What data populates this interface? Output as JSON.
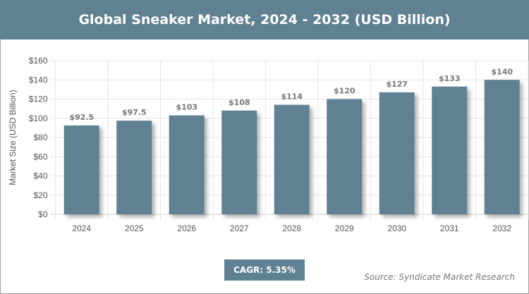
{
  "chart_data": {
    "type": "bar",
    "title": "Global Sneaker Market, 2024 - 2032 (USD Billion)",
    "ylabel": "Market Size (USD Billion)",
    "xlabel": "",
    "categories": [
      "2024",
      "2025",
      "2026",
      "2027",
      "2028",
      "2029",
      "2030",
      "2031",
      "2032"
    ],
    "values": [
      92.5,
      97.5,
      103,
      108,
      114,
      120,
      127,
      133,
      140
    ],
    "data_labels": [
      "$92.5",
      "$97.5",
      "$103",
      "$108",
      "$114",
      "$120",
      "$127",
      "$133",
      "$140"
    ],
    "ylim": [
      0,
      160
    ],
    "yticks": [
      "$0",
      "$20",
      "$40",
      "$60",
      "$80",
      "$100",
      "$120",
      "$140",
      "$160"
    ],
    "grid": true,
    "bar_color": "#5f8191"
  },
  "cagr": "CAGR: 5.35%",
  "source": "Source: Syndicate Market Research"
}
